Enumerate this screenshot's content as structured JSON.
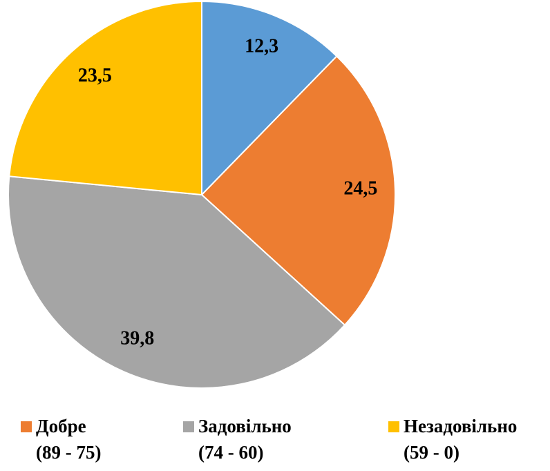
{
  "chart_data": {
    "type": "pie",
    "categories": [
      null,
      "Добре\n(89 - 75)",
      "Задовільно\n(74 - 60)",
      "Незадовільно\n(59 - 0)"
    ],
    "values": [
      12.3,
      24.5,
      39.8,
      23.5
    ],
    "value_labels": [
      "12,3",
      "24,5",
      "39,8",
      "23,5"
    ],
    "colors": [
      "#5b9bd5",
      "#ed7d31",
      "#a5a5a5",
      "#ffc000"
    ],
    "legend": "bottom"
  }
}
